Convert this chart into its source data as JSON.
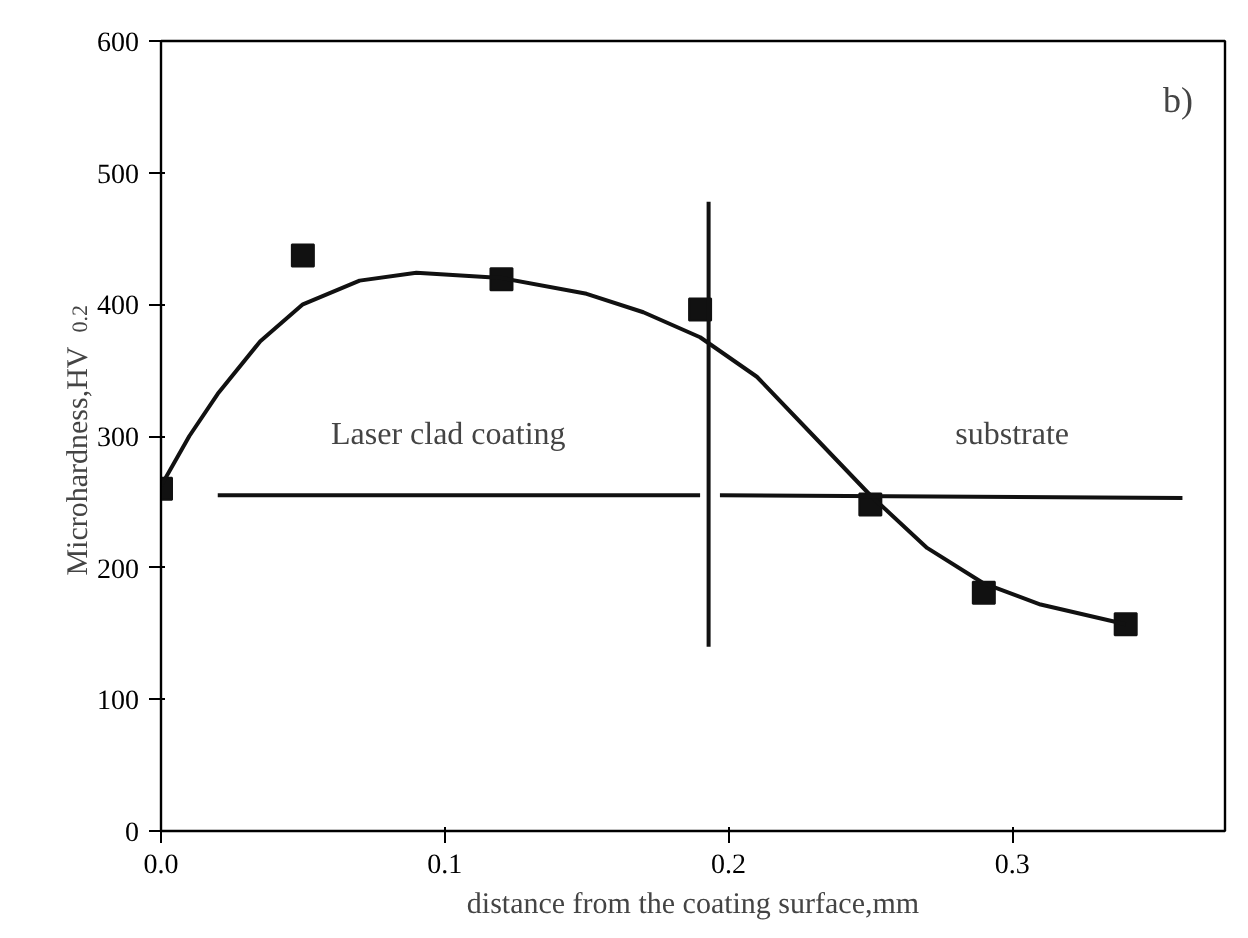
{
  "chart_data": {
    "type": "scatter",
    "xlabel": "distance from the coating surface,mm",
    "ylabel": "Microhardness,HV$_{0.2}$",
    "xlim": [
      0,
      0.375
    ],
    "ylim": [
      0,
      600
    ],
    "xticks": [
      {
        "value": 0,
        "label": "0.0"
      },
      0.1,
      0.2,
      0.3
    ],
    "yticks": [
      0,
      100,
      200,
      300,
      400,
      500,
      600
    ],
    "grid": false,
    "series": [
      {
        "color": "#111111",
        "marker": "square",
        "x": [
          0,
          0.05,
          0.12,
          0.19,
          0.25,
          0.29,
          0.34
        ],
        "values": [
          260,
          437,
          419,
          396,
          248,
          181,
          157
        ]
      },
      {
        "type": "line",
        "color": "#111111",
        "x": [
          0,
          0.01,
          0.02,
          0.035,
          0.05,
          0.07,
          0.09,
          0.12,
          0.15,
          0.17,
          0.19,
          0.21,
          0.23,
          0.25,
          0.27,
          0.29,
          0.31,
          0.34
        ],
        "values": [
          262,
          300,
          332,
          372,
          400,
          418,
          424,
          420,
          408,
          394,
          375,
          345,
          300,
          255,
          215,
          188,
          172,
          157
        ]
      },
      {
        "type": "line",
        "color": "#111111",
        "x": [
          0.193,
          0.193
        ],
        "values": [
          140,
          478
        ]
      },
      {
        "type": "line",
        "color": "#111111",
        "x": [
          0.02,
          0.19
        ],
        "values": [
          255,
          255
        ]
      },
      {
        "type": "line",
        "color": "#111111",
        "x": [
          0.36,
          0.197
        ],
        "values": [
          253,
          255
        ]
      }
    ],
    "annotations": [
      "Laser clad coating",
      "substrate",
      "b)"
    ]
  }
}
